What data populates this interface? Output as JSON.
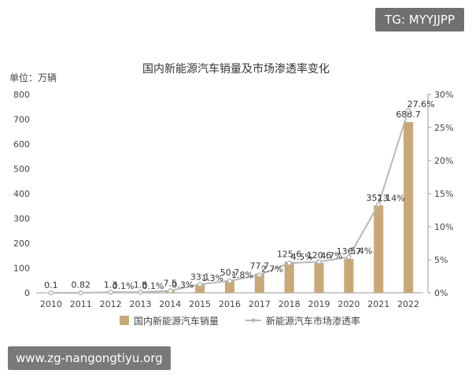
{
  "watermarks": {
    "tag": "TG: MYYJJPP",
    "url": "www.zg-nangongtiyu.org"
  },
  "chart_data": {
    "type": "bar",
    "title": "国内新能源汽车销量及市场渗透率变化",
    "ylabel_left": "单位：万辆",
    "categories": [
      "2010",
      "2011",
      "2012",
      "2013",
      "2014",
      "2015",
      "2016",
      "2017",
      "2018",
      "2019",
      "2020",
      "2021",
      "2022"
    ],
    "series": [
      {
        "name": "国内新能源汽车销量",
        "type": "bar",
        "axis": "left",
        "values": [
          0.1,
          0.82,
          1.3,
          1.8,
          7.5,
          33.1,
          50.7,
          77.7,
          125.6,
          120.6,
          136.7,
          352.1,
          688.7
        ],
        "labels": [
          "0.1",
          "0.82",
          "1.3",
          "1.8",
          "7.5",
          "33.1",
          "50.7",
          "77.7",
          "125.6",
          "120.6",
          "136.7",
          "352.1",
          "688.7"
        ],
        "color": "#c9a878"
      },
      {
        "name": "新能源汽车市场渗透率",
        "type": "line",
        "axis": "right",
        "values": [
          0,
          0,
          0.1,
          0.1,
          0.3,
          1.3,
          1.8,
          2.7,
          4.5,
          4.7,
          5.4,
          13.4,
          27.6
        ],
        "labels": [
          "",
          "",
          "0.1%",
          "0.1%",
          "0.3%",
          "1.3%",
          "1.8%",
          "2.7%",
          "4.5%",
          "4.7%",
          "5.4%",
          "13.4%",
          "27.6%"
        ],
        "color": "#b8b8b8"
      }
    ],
    "left_axis": {
      "ylim": [
        0,
        800
      ],
      "ticks": [
        "0",
        "100",
        "200",
        "300",
        "400",
        "500",
        "600",
        "700",
        "800"
      ]
    },
    "right_axis": {
      "ylim": [
        0,
        30
      ],
      "ticks": [
        "0%",
        "5%",
        "10%",
        "15%",
        "20%",
        "25%",
        "30%"
      ]
    },
    "grid": false,
    "legend_position": "bottom"
  }
}
